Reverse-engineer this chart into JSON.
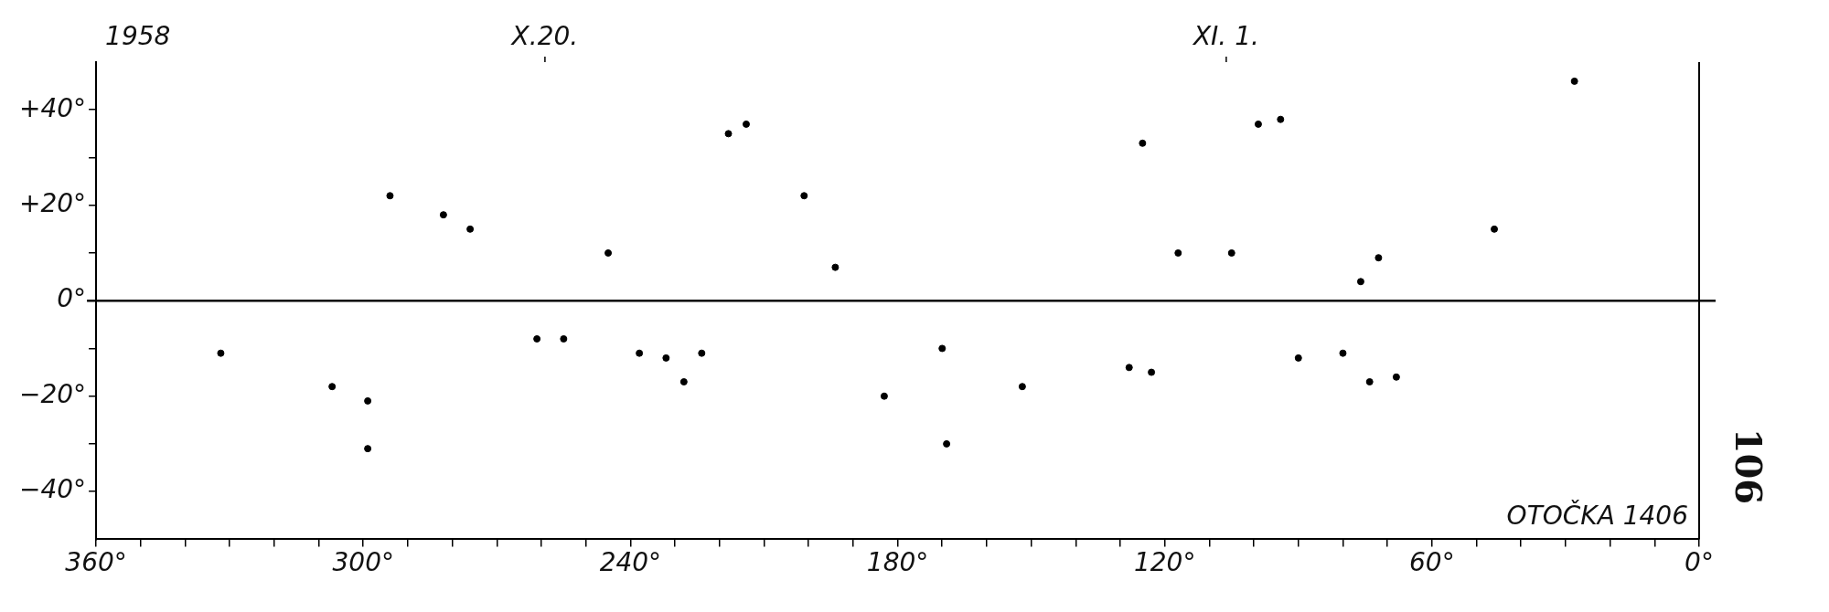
{
  "chart_data": {
    "type": "scatter",
    "title": "1958",
    "xlim": [
      360,
      0
    ],
    "ylim": [
      -50,
      50
    ],
    "xticks": [
      {
        "value": 360,
        "label": "360°"
      },
      {
        "value": 350,
        "label": null
      },
      {
        "value": 340,
        "label": null
      },
      {
        "value": 330,
        "label": null
      },
      {
        "value": 320,
        "label": null
      },
      {
        "value": 310,
        "label": null
      },
      {
        "value": 300,
        "label": "300°"
      },
      {
        "value": 290,
        "label": null
      },
      {
        "value": 280,
        "label": null
      },
      {
        "value": 270,
        "label": null
      },
      {
        "value": 260,
        "label": null
      },
      {
        "value": 250,
        "label": null
      },
      {
        "value": 240,
        "label": "240°"
      },
      {
        "value": 230,
        "label": null
      },
      {
        "value": 220,
        "label": null
      },
      {
        "value": 210,
        "label": null
      },
      {
        "value": 200,
        "label": null
      },
      {
        "value": 190,
        "label": null
      },
      {
        "value": 180,
        "label": "180°"
      },
      {
        "value": 170,
        "label": null
      },
      {
        "value": 160,
        "label": null
      },
      {
        "value": 150,
        "label": null
      },
      {
        "value": 140,
        "label": null
      },
      {
        "value": 130,
        "label": null
      },
      {
        "value": 120,
        "label": "120°"
      },
      {
        "value": 110,
        "label": null
      },
      {
        "value": 100,
        "label": null
      },
      {
        "value": 90,
        "label": null
      },
      {
        "value": 80,
        "label": null
      },
      {
        "value": 70,
        "label": null
      },
      {
        "value": 60,
        "label": "60°"
      },
      {
        "value": 50,
        "label": null
      },
      {
        "value": 40,
        "label": null
      },
      {
        "value": 30,
        "label": null
      },
      {
        "value": 20,
        "label": null
      },
      {
        "value": 10,
        "label": null
      },
      {
        "value": 0,
        "label": "0°"
      }
    ],
    "yticks": [
      {
        "value": -40,
        "label": "−40°"
      },
      {
        "value": -30,
        "label": null
      },
      {
        "value": -20,
        "label": "−20°"
      },
      {
        "value": -10,
        "label": null
      },
      {
        "value": 0,
        "label": "0°"
      },
      {
        "value": 10,
        "label": null
      },
      {
        "value": 20,
        "label": "+20°"
      },
      {
        "value": 30,
        "label": null
      },
      {
        "value": 40,
        "label": "+40°"
      }
    ],
    "ref_lines": [
      {
        "axis": "y",
        "value": 0,
        "color": "#000000"
      }
    ],
    "grid": false,
    "legend": false,
    "marker": "circle",
    "annotations": [
      "OTOČKA 1406",
      "106",
      "X.20.",
      "XI. 1."
    ],
    "series": [
      {
        "color": "#000000",
        "x": [
          294,
          282,
          276,
          332,
          307,
          299,
          299,
          245,
          261,
          255,
          238,
          232,
          228,
          224,
          218,
          214,
          201,
          194,
          183,
          170,
          169,
          152,
          125,
          117,
          105,
          99,
          94,
          128,
          123,
          90,
          80,
          28,
          46,
          72,
          76,
          74,
          68
        ],
        "values": [
          22,
          18,
          15,
          -11,
          -18,
          -21,
          -31,
          10,
          -8,
          -8,
          -11,
          -12,
          -17,
          -11,
          35,
          37,
          22,
          7,
          -20,
          -10,
          -30,
          -18,
          33,
          10,
          10,
          37,
          38,
          -14,
          -15,
          -12,
          -11,
          46,
          15,
          9,
          4,
          -17,
          -16
        ]
      }
    ]
  }
}
